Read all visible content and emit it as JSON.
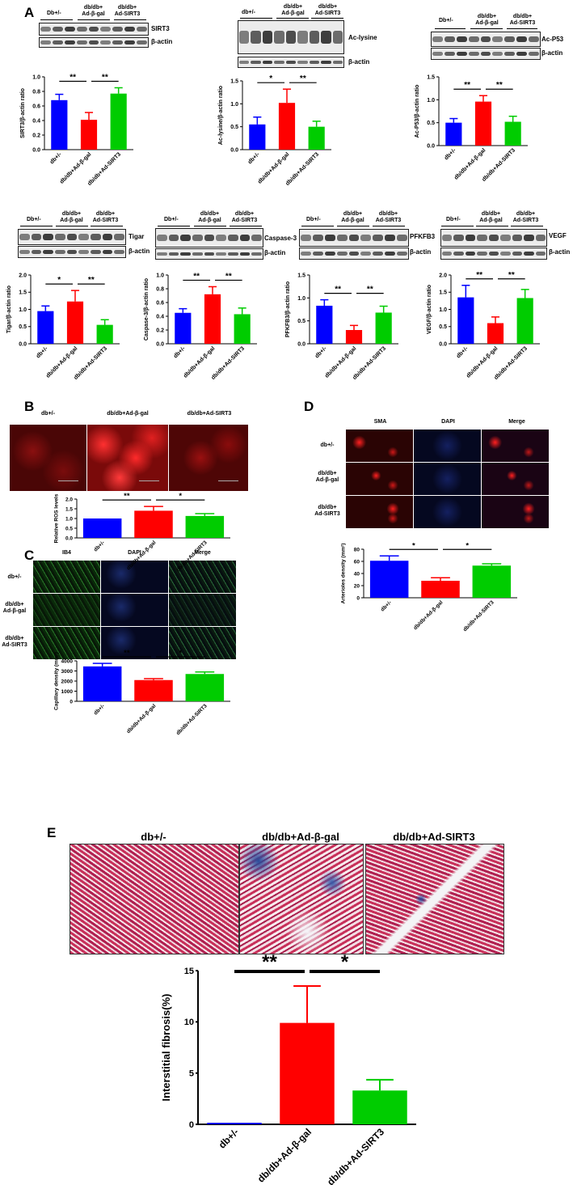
{
  "panels": {
    "a": "A",
    "b": "B",
    "c": "C",
    "d": "D",
    "e": "E"
  },
  "labels": {
    "db_pm": "db+/-",
    "Db_pm": "Db+/-",
    "dbdb": "db/db+",
    "ad_bgal": "Ad-β-gal",
    "ad_sirt3": "Ad-SIRT3",
    "dbdb_ad_bgal": "db/db+Ad-β-gal",
    "dbdb_ad_sirt3": "db/db+Ad-SIRT3",
    "beta_actin": "β-actin",
    "sirt3": "SIRT3",
    "ac_lysine": "Ac-lysine",
    "ac_p53": "Ac-P53",
    "tigar": "Tigar",
    "caspase3": "Caspase-3",
    "pfkfb3": "PFKFB3",
    "vegf": "VEGF",
    "ib4": "IB4",
    "dapi": "DAPI",
    "merge": "Merge",
    "sma": "SMA"
  },
  "chart_data": [
    {
      "id": "sirt3",
      "type": "bar",
      "categories": [
        "db+/-",
        "db/db+Ad-β-gal",
        "db/db+Ad-SIRT3"
      ],
      "values": [
        0.68,
        0.41,
        0.77
      ],
      "errors": [
        0.08,
        0.1,
        0.08
      ],
      "ylabel": "SIRT3/β-actin ratio",
      "ylim": [
        0,
        1.0
      ],
      "ticks": [
        "0.0",
        "0.2",
        "0.4",
        "0.6",
        "0.8",
        "1.0"
      ],
      "sig": [
        "**",
        "**"
      ],
      "colors": [
        "#0000ff",
        "#ff0000",
        "#00cc00"
      ]
    },
    {
      "id": "aclys",
      "type": "bar",
      "categories": [
        "db+/-",
        "db/db+Ad-β-gal",
        "db/db+Ad-SIRT3"
      ],
      "values": [
        0.55,
        1.02,
        0.5
      ],
      "errors": [
        0.16,
        0.3,
        0.12
      ],
      "ylabel": "Ac-lysine/β-actin ratio",
      "ylim": [
        0,
        1.5
      ],
      "ticks": [
        "0.0",
        "0.5",
        "1.0",
        "1.5"
      ],
      "sig": [
        "*",
        "**"
      ],
      "colors": [
        "#0000ff",
        "#ff0000",
        "#00cc00"
      ]
    },
    {
      "id": "acp53",
      "type": "bar",
      "categories": [
        "db+/-",
        "db/db+Ad-β-gal",
        "db/db+Ad-SIRT3"
      ],
      "values": [
        0.5,
        0.96,
        0.52
      ],
      "errors": [
        0.09,
        0.13,
        0.12
      ],
      "ylabel": "Ac-P53/β-actin ratio",
      "ylim": [
        0,
        1.5
      ],
      "ticks": [
        "0.0",
        "0.5",
        "1.0",
        "1.5"
      ],
      "sig": [
        "**",
        "**"
      ],
      "colors": [
        "#0000ff",
        "#ff0000",
        "#00cc00"
      ]
    },
    {
      "id": "tigar",
      "type": "bar",
      "categories": [
        "db+/-",
        "db/db+Ad-β-gal",
        "db/db+Ad-SIRT3"
      ],
      "values": [
        0.95,
        1.23,
        0.55
      ],
      "errors": [
        0.15,
        0.32,
        0.15
      ],
      "ylabel": "Tigar/β-actin ratio",
      "ylim": [
        0,
        2.0
      ],
      "ticks": [
        "0.0",
        "0.5",
        "1.0",
        "1.5",
        "2.0"
      ],
      "sig": [
        "*",
        "**"
      ],
      "colors": [
        "#0000ff",
        "#ff0000",
        "#00cc00"
      ]
    },
    {
      "id": "casp3",
      "type": "bar",
      "categories": [
        "db+/-",
        "db/db+Ad-β-gal",
        "db/db+Ad-SIRT3"
      ],
      "values": [
        0.45,
        0.72,
        0.43
      ],
      "errors": [
        0.06,
        0.11,
        0.09
      ],
      "ylabel": "Caspase-3/β-actin ratio",
      "ylim": [
        0,
        1.0
      ],
      "ticks": [
        "0.0",
        "0.2",
        "0.4",
        "0.6",
        "0.8",
        "1.0"
      ],
      "sig": [
        "**",
        "**"
      ],
      "colors": [
        "#0000ff",
        "#ff0000",
        "#00cc00"
      ]
    },
    {
      "id": "pfkfb3",
      "type": "bar",
      "categories": [
        "db+/-",
        "db/db+Ad-β-gal",
        "db/db+Ad-SIRT3"
      ],
      "values": [
        0.83,
        0.3,
        0.68
      ],
      "errors": [
        0.13,
        0.1,
        0.14
      ],
      "ylabel": "PFKFB3/β-actin ratio",
      "ylim": [
        0,
        1.5
      ],
      "ticks": [
        "0.0",
        "0.5",
        "1.0",
        "1.5"
      ],
      "sig": [
        "**",
        "**"
      ],
      "colors": [
        "#0000ff",
        "#ff0000",
        "#00cc00"
      ]
    },
    {
      "id": "vegf",
      "type": "bar",
      "categories": [
        "db+/-",
        "db/db+Ad-β-gal",
        "db/db+Ad-SIRT3"
      ],
      "values": [
        1.35,
        0.6,
        1.33
      ],
      "errors": [
        0.35,
        0.18,
        0.25
      ],
      "ylabel": "VEGF/β-actin ratio",
      "ylim": [
        0,
        2.0
      ],
      "ticks": [
        "0.0",
        "0.5",
        "1.0",
        "1.5",
        "2.0"
      ],
      "sig": [
        "**",
        "**"
      ],
      "colors": [
        "#0000ff",
        "#ff0000",
        "#00cc00"
      ]
    },
    {
      "id": "ros",
      "type": "bar",
      "categories": [
        "db+/-",
        "db/db+Ad-β-gal",
        "db/db+Ad-SIRT3"
      ],
      "values": [
        1.0,
        1.4,
        1.13
      ],
      "errors": [
        0,
        0.22,
        0.12
      ],
      "ylabel": "Relative ROS levels",
      "ylim": [
        0,
        2.0
      ],
      "ticks": [
        "0.0",
        "0.5",
        "1.0",
        "1.5",
        "2.0"
      ],
      "sig": [
        "**",
        "*"
      ],
      "colors": [
        "#0000ff",
        "#ff0000",
        "#00cc00"
      ]
    },
    {
      "id": "cap",
      "type": "bar",
      "categories": [
        "db+/-",
        "db/db+Ad-β-gal",
        "db/db+Ad-SIRT3"
      ],
      "values": [
        3450,
        2100,
        2700
      ],
      "errors": [
        300,
        140,
        200
      ],
      "ylabel": "Capillary density (mm²)",
      "ylim": [
        0,
        4000
      ],
      "ticks": [
        "0",
        "1000",
        "2000",
        "3000",
        "4000"
      ],
      "sig": [
        "**",
        "*"
      ],
      "colors": [
        "#0000ff",
        "#ff0000",
        "#00cc00"
      ]
    },
    {
      "id": "art",
      "type": "bar",
      "categories": [
        "db+/-",
        "db/db+Ad-β-gal",
        "db/db+Ad-SIRT3"
      ],
      "values": [
        61,
        28,
        53
      ],
      "errors": [
        8,
        5,
        3
      ],
      "ylabel": "Arterioles density (mm²)",
      "ylim": [
        0,
        80
      ],
      "ticks": [
        "0",
        "20",
        "40",
        "60",
        "80"
      ],
      "sig": [
        "*",
        "*"
      ],
      "colors": [
        "#0000ff",
        "#ff0000",
        "#00cc00"
      ]
    },
    {
      "id": "fib",
      "type": "bar",
      "categories": [
        "db+/-",
        "db/db+Ad-β-gal",
        "db/db+Ad-SIRT3"
      ],
      "values": [
        0.15,
        9.9,
        3.3
      ],
      "errors": [
        0,
        3.6,
        1.05
      ],
      "ylabel": "Interstitial fibrosis(%)",
      "ylim": [
        0,
        15
      ],
      "ticks": [
        "0",
        "5",
        "10",
        "15"
      ],
      "sig": [
        "**",
        "*"
      ],
      "colors": [
        "#0000ff",
        "#ff0000",
        "#00cc00"
      ]
    }
  ]
}
